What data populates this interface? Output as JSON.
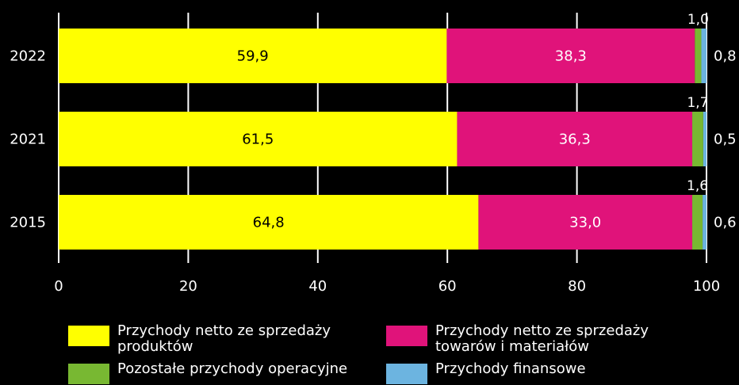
{
  "chart_data": {
    "type": "bar",
    "orientation": "horizontal",
    "stacked": true,
    "categories": [
      "2022",
      "2021",
      "2015"
    ],
    "series": [
      {
        "name": "Przychody netto ze sprzedaży produktów",
        "color": "#ffff00",
        "values": [
          59.9,
          61.5,
          64.8
        ],
        "labels": [
          "59,9",
          "61,5",
          "64,8"
        ]
      },
      {
        "name": "Przychody netto ze sprzedaży towarów i materiałów",
        "color": "#e0137a",
        "values": [
          38.3,
          36.3,
          33.0
        ],
        "labels": [
          "38,3",
          "36,3",
          "33,0"
        ]
      },
      {
        "name": "Pozostałe przychody operacyjne",
        "color": "#78b832",
        "values": [
          1.0,
          1.7,
          1.6
        ],
        "labels": [
          "1,0",
          "1,7",
          "1,6"
        ]
      },
      {
        "name": "Przychody finansowe",
        "color": "#6cb4e0",
        "values": [
          0.8,
          0.5,
          0.6
        ],
        "labels": [
          "0,8",
          "0,5",
          "0,6"
        ]
      }
    ],
    "xlim": [
      0,
      100
    ],
    "xticks": [
      "0",
      "20",
      "40",
      "60",
      "80",
      "100"
    ],
    "grid": true,
    "legend_placement": "bottom",
    "xlabel": "",
    "ylabel": "",
    "title": ""
  },
  "legend": {
    "items": [
      {
        "label_line1": "Przychody netto ze sprzedaży",
        "label_line2": "produktów",
        "color": "#ffff00"
      },
      {
        "label_line1": "Przychody netto ze sprzedaży",
        "label_line2": "towarów i materiałów",
        "color": "#e0137a"
      },
      {
        "label_line1": "Pozostałe przychody operacyjne",
        "label_line2": "",
        "color": "#78b832"
      },
      {
        "label_line1": "Przychody finansowe",
        "label_line2": "",
        "color": "#6cb4e0"
      }
    ]
  },
  "colors": {
    "background": "#000000",
    "text": "#ffffff",
    "grid": "#ffffff"
  }
}
